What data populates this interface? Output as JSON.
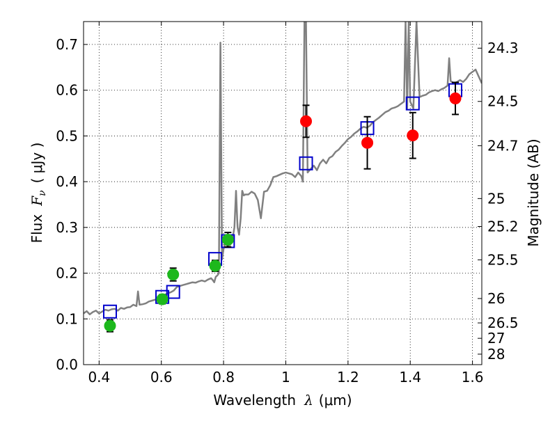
{
  "chart_data": {
    "type": "scatter",
    "xlabel_prefix": "Wavelength",
    "xlabel_symbol": "λ",
    "xlabel_unit": "(μm)",
    "ylabel_prefix": "Flux",
    "ylabel_symbol": "F",
    "ylabel_subscript": "ν",
    "ylabel_unit": "( μJy )",
    "y2label": "Magnitude (AB)",
    "xlim": [
      0.35,
      1.63
    ],
    "ylim": [
      0.0,
      0.75
    ],
    "grid": true,
    "x_ticks": [
      {
        "value": 0.4,
        "label": "0.4"
      },
      {
        "value": 0.6,
        "label": "0.6"
      },
      {
        "value": 0.8,
        "label": "0.8"
      },
      {
        "value": 1.0,
        "label": "1"
      },
      {
        "value": 1.2,
        "label": "1.2"
      },
      {
        "value": 1.4,
        "label": "1.4"
      },
      {
        "value": 1.6,
        "label": "1.6"
      }
    ],
    "y_ticks": [
      {
        "value": 0.0,
        "label": "0.0"
      },
      {
        "value": 0.1,
        "label": "0.1"
      },
      {
        "value": 0.2,
        "label": "0.2"
      },
      {
        "value": 0.3,
        "label": "0.3"
      },
      {
        "value": 0.4,
        "label": "0.4"
      },
      {
        "value": 0.5,
        "label": "0.5"
      },
      {
        "value": 0.6,
        "label": "0.6"
      },
      {
        "value": 0.7,
        "label": "0.7"
      }
    ],
    "y2_ticks": [
      {
        "mag": 24.3,
        "label": "24.3"
      },
      {
        "mag": 24.5,
        "label": "24.5"
      },
      {
        "mag": 24.7,
        "label": "24.7"
      },
      {
        "mag": 25.0,
        "label": "25"
      },
      {
        "mag": 25.2,
        "label": "25.2"
      },
      {
        "mag": 25.5,
        "label": "25.5"
      },
      {
        "mag": 26.0,
        "label": "26"
      },
      {
        "mag": 26.5,
        "label": "26.5"
      },
      {
        "mag": 27.0,
        "label": "27"
      },
      {
        "mag": 28.0,
        "label": "28"
      }
    ],
    "colors": {
      "model": "#808080",
      "model_box": "#0000cc",
      "optical_points": "#1db81d",
      "ir_points": "#ff0000",
      "errorbar": "#000000"
    },
    "model_spectrum": [
      [
        0.35,
        0.112
      ],
      [
        0.36,
        0.117
      ],
      [
        0.37,
        0.11
      ],
      [
        0.38,
        0.115
      ],
      [
        0.39,
        0.118
      ],
      [
        0.4,
        0.112
      ],
      [
        0.41,
        0.116
      ],
      [
        0.42,
        0.12
      ],
      [
        0.43,
        0.118
      ],
      [
        0.44,
        0.121
      ],
      [
        0.45,
        0.122
      ],
      [
        0.46,
        0.118
      ],
      [
        0.47,
        0.124
      ],
      [
        0.48,
        0.122
      ],
      [
        0.49,
        0.125
      ],
      [
        0.5,
        0.126
      ],
      [
        0.51,
        0.131
      ],
      [
        0.52,
        0.128
      ],
      [
        0.525,
        0.16
      ],
      [
        0.53,
        0.131
      ],
      [
        0.54,
        0.132
      ],
      [
        0.55,
        0.134
      ],
      [
        0.56,
        0.138
      ],
      [
        0.57,
        0.14
      ],
      [
        0.58,
        0.142
      ],
      [
        0.59,
        0.145
      ],
      [
        0.6,
        0.148
      ],
      [
        0.61,
        0.152
      ],
      [
        0.62,
        0.156
      ],
      [
        0.63,
        0.158
      ],
      [
        0.64,
        0.162
      ],
      [
        0.65,
        0.17
      ],
      [
        0.66,
        0.172
      ],
      [
        0.67,
        0.174
      ],
      [
        0.68,
        0.176
      ],
      [
        0.69,
        0.178
      ],
      [
        0.7,
        0.18
      ],
      [
        0.71,
        0.179
      ],
      [
        0.72,
        0.182
      ],
      [
        0.73,
        0.184
      ],
      [
        0.74,
        0.182
      ],
      [
        0.75,
        0.186
      ],
      [
        0.76,
        0.189
      ],
      [
        0.765,
        0.185
      ],
      [
        0.77,
        0.18
      ],
      [
        0.775,
        0.192
      ],
      [
        0.78,
        0.195
      ],
      [
        0.785,
        0.2
      ],
      [
        0.79,
        0.704
      ],
      [
        0.795,
        0.23
      ],
      [
        0.8,
        0.253
      ],
      [
        0.805,
        0.266
      ],
      [
        0.81,
        0.26
      ],
      [
        0.815,
        0.268
      ],
      [
        0.82,
        0.258
      ],
      [
        0.825,
        0.276
      ],
      [
        0.83,
        0.28
      ],
      [
        0.835,
        0.3
      ],
      [
        0.84,
        0.38
      ],
      [
        0.845,
        0.3
      ],
      [
        0.85,
        0.284
      ],
      [
        0.855,
        0.32
      ],
      [
        0.86,
        0.38
      ],
      [
        0.865,
        0.37
      ],
      [
        0.87,
        0.372
      ],
      [
        0.88,
        0.372
      ],
      [
        0.89,
        0.378
      ],
      [
        0.9,
        0.374
      ],
      [
        0.91,
        0.36
      ],
      [
        0.92,
        0.32
      ],
      [
        0.93,
        0.378
      ],
      [
        0.94,
        0.38
      ],
      [
        0.95,
        0.392
      ],
      [
        0.96,
        0.41
      ],
      [
        0.97,
        0.412
      ],
      [
        0.98,
        0.415
      ],
      [
        0.99,
        0.418
      ],
      [
        1.0,
        0.42
      ],
      [
        1.01,
        0.418
      ],
      [
        1.02,
        0.416
      ],
      [
        1.03,
        0.41
      ],
      [
        1.04,
        0.42
      ],
      [
        1.05,
        0.412
      ],
      [
        1.055,
        0.4
      ],
      [
        1.06,
        0.75
      ],
      [
        1.065,
        0.75
      ],
      [
        1.07,
        0.42
      ],
      [
        1.08,
        0.428
      ],
      [
        1.09,
        0.435
      ],
      [
        1.1,
        0.425
      ],
      [
        1.11,
        0.44
      ],
      [
        1.12,
        0.448
      ],
      [
        1.13,
        0.44
      ],
      [
        1.14,
        0.452
      ],
      [
        1.15,
        0.456
      ],
      [
        1.16,
        0.465
      ],
      [
        1.17,
        0.47
      ],
      [
        1.18,
        0.478
      ],
      [
        1.19,
        0.485
      ],
      [
        1.2,
        0.493
      ],
      [
        1.21,
        0.498
      ],
      [
        1.22,
        0.505
      ],
      [
        1.23,
        0.51
      ],
      [
        1.24,
        0.516
      ],
      [
        1.25,
        0.52
      ],
      [
        1.26,
        0.518
      ],
      [
        1.27,
        0.522
      ],
      [
        1.28,
        0.53
      ],
      [
        1.29,
        0.535
      ],
      [
        1.3,
        0.54
      ],
      [
        1.31,
        0.546
      ],
      [
        1.32,
        0.552
      ],
      [
        1.33,
        0.555
      ],
      [
        1.34,
        0.56
      ],
      [
        1.35,
        0.562
      ],
      [
        1.36,
        0.565
      ],
      [
        1.37,
        0.57
      ],
      [
        1.38,
        0.575
      ],
      [
        1.385,
        0.75
      ],
      [
        1.39,
        0.56
      ],
      [
        1.395,
        0.75
      ],
      [
        1.4,
        0.575
      ],
      [
        1.41,
        0.56
      ],
      [
        1.42,
        0.75
      ],
      [
        1.43,
        0.585
      ],
      [
        1.44,
        0.588
      ],
      [
        1.45,
        0.59
      ],
      [
        1.46,
        0.595
      ],
      [
        1.47,
        0.598
      ],
      [
        1.48,
        0.6
      ],
      [
        1.49,
        0.598
      ],
      [
        1.5,
        0.602
      ],
      [
        1.51,
        0.605
      ],
      [
        1.52,
        0.61
      ],
      [
        1.525,
        0.67
      ],
      [
        1.53,
        0.62
      ],
      [
        1.54,
        0.615
      ],
      [
        1.55,
        0.618
      ],
      [
        1.56,
        0.622
      ],
      [
        1.57,
        0.618
      ],
      [
        1.58,
        0.625
      ],
      [
        1.59,
        0.635
      ],
      [
        1.6,
        0.64
      ],
      [
        1.61,
        0.645
      ],
      [
        1.62,
        0.63
      ],
      [
        1.63,
        0.615
      ]
    ],
    "model_boxes": [
      {
        "x": 0.435,
        "y": 0.116
      },
      {
        "x": 0.603,
        "y": 0.148
      },
      {
        "x": 0.638,
        "y": 0.159
      },
      {
        "x": 0.773,
        "y": 0.231
      },
      {
        "x": 0.814,
        "y": 0.27
      },
      {
        "x": 1.065,
        "y": 0.44
      },
      {
        "x": 1.262,
        "y": 0.517
      },
      {
        "x": 1.408,
        "y": 0.571
      },
      {
        "x": 1.545,
        "y": 0.6
      }
    ],
    "series": [
      {
        "color_key": "optical_points",
        "points": [
          {
            "x": 0.435,
            "y": 0.085,
            "err": 0.013
          },
          {
            "x": 0.603,
            "y": 0.143,
            "err": 0.01
          },
          {
            "x": 0.638,
            "y": 0.197,
            "err": 0.014
          },
          {
            "x": 0.773,
            "y": 0.216,
            "err": 0.012
          },
          {
            "x": 0.814,
            "y": 0.273,
            "err": 0.016
          }
        ]
      },
      {
        "color_key": "ir_points",
        "points": [
          {
            "x": 1.065,
            "y": 0.532,
            "err": 0.035
          },
          {
            "x": 1.262,
            "y": 0.485,
            "err": 0.057
          },
          {
            "x": 1.408,
            "y": 0.501,
            "err": 0.05
          },
          {
            "x": 1.545,
            "y": 0.582,
            "err": 0.035
          }
        ]
      }
    ]
  }
}
